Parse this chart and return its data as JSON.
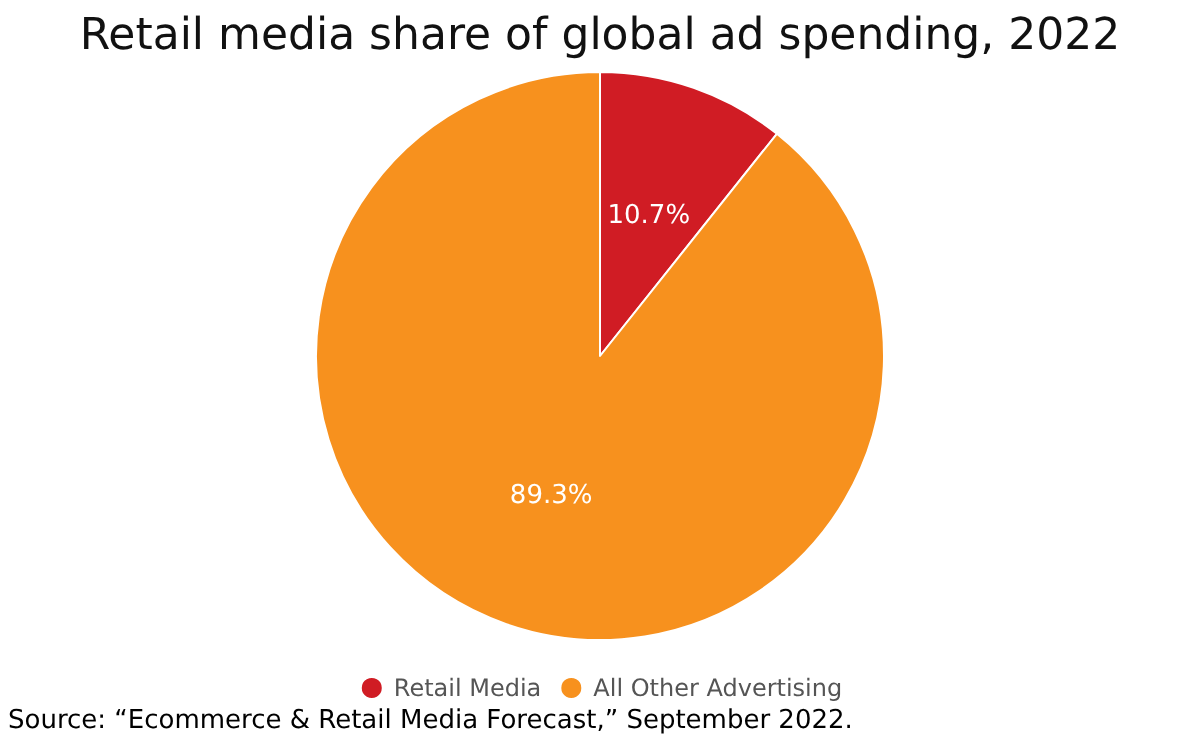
{
  "chart_data": {
    "type": "pie",
    "title": "Retail media share of global ad spending, 2022",
    "categories": [
      "Retail Media",
      "All Other Advertising"
    ],
    "values": [
      10.7,
      89.3
    ],
    "colors": [
      "#d01c24",
      "#f7911e"
    ],
    "value_labels": [
      "10.7%",
      "89.3%"
    ],
    "legend": "bottom",
    "annotations": [
      "Source: “Ecommerce & Retail Media Forecast,” September 2022."
    ]
  }
}
